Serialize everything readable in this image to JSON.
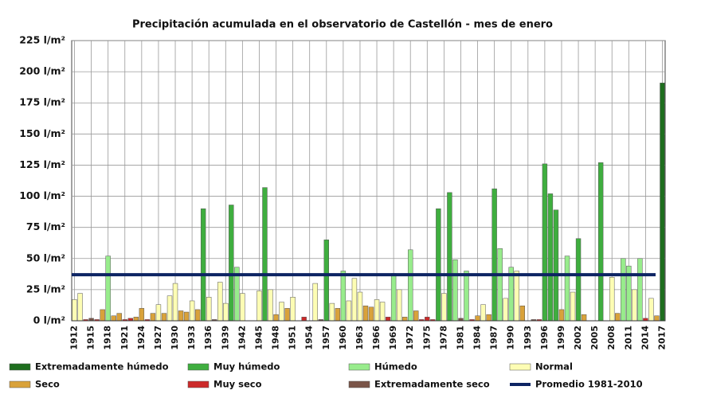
{
  "chart_data": {
    "type": "bar",
    "title": "Precipitación acumulada en el observatorio de Castellón - mes de enero",
    "categories": [
      "1912",
      null,
      null,
      "1915",
      null,
      null,
      "1918",
      null,
      null,
      "1921",
      null,
      null,
      "1924",
      null,
      null,
      "1927",
      null,
      null,
      "1930",
      null,
      null,
      "1933",
      null,
      null,
      "1936",
      null,
      null,
      "1939",
      null,
      null,
      "1942",
      null,
      null,
      "1945",
      null,
      null,
      "1948",
      null,
      null,
      "1951",
      null,
      null,
      "1954",
      null,
      null,
      "1957",
      null,
      null,
      "1960",
      null,
      null,
      "1963",
      null,
      null,
      "1966",
      null,
      null,
      "1969",
      null,
      null,
      "1972",
      null,
      null,
      "1975",
      null,
      null,
      "1978",
      null,
      null,
      "1981",
      null,
      null,
      "1984",
      null,
      null,
      "1987",
      null,
      null,
      "1990",
      null,
      null,
      "1993",
      null,
      null,
      "1996",
      null,
      null,
      "1999",
      null,
      null,
      "2002",
      null,
      null,
      "2005",
      null,
      null,
      "2008",
      null,
      null,
      "2011",
      null,
      null,
      "2014",
      null,
      null,
      "2017"
    ],
    "series": [
      {
        "name": "Extremadamente húmedo",
        "color": "#1e6e1e",
        "values": [
          null,
          null,
          null,
          null,
          null,
          null,
          null,
          null,
          null,
          null,
          null,
          null,
          null,
          null,
          null,
          null,
          null,
          null,
          null,
          null,
          null,
          null,
          null,
          null,
          null,
          null,
          null,
          null,
          null,
          null,
          null,
          null,
          null,
          null,
          null,
          null,
          null,
          null,
          null,
          null,
          null,
          null,
          null,
          null,
          null,
          null,
          null,
          null,
          null,
          null,
          null,
          null,
          null,
          null,
          null,
          null,
          null,
          null,
          null,
          null,
          null,
          null,
          null,
          null,
          null,
          null,
          null,
          null,
          null,
          null,
          null,
          null,
          null,
          null,
          null,
          null,
          null,
          null,
          null,
          null,
          null,
          null,
          null,
          null,
          null,
          null,
          null,
          null,
          null,
          null,
          null,
          null,
          null,
          null,
          null,
          null,
          null,
          null,
          null,
          null,
          null,
          null,
          null,
          null,
          null,
          191
        ]
      },
      {
        "name": "Muy húmedo",
        "color": "#3fae3f",
        "values": [
          null,
          null,
          null,
          null,
          null,
          null,
          null,
          null,
          null,
          null,
          null,
          null,
          null,
          null,
          null,
          null,
          null,
          null,
          null,
          null,
          null,
          null,
          null,
          90,
          null,
          null,
          null,
          null,
          93,
          null,
          null,
          null,
          null,
          null,
          107,
          null,
          null,
          null,
          null,
          null,
          null,
          null,
          null,
          null,
          null,
          65,
          null,
          null,
          null,
          null,
          null,
          null,
          null,
          null,
          null,
          null,
          null,
          null,
          null,
          null,
          null,
          null,
          null,
          null,
          null,
          90,
          null,
          103,
          null,
          null,
          null,
          null,
          null,
          null,
          null,
          106,
          null,
          null,
          null,
          null,
          null,
          null,
          null,
          null,
          126,
          102,
          89,
          null,
          null,
          null,
          66,
          null,
          null,
          null,
          127,
          null,
          null,
          null,
          null,
          null,
          null,
          null,
          null,
          null,
          null,
          null
        ]
      },
      {
        "name": "Húmedo",
        "color": "#98ec8c",
        "values": [
          null,
          null,
          null,
          null,
          null,
          null,
          52,
          null,
          null,
          null,
          null,
          null,
          null,
          null,
          null,
          null,
          null,
          null,
          null,
          null,
          null,
          null,
          null,
          null,
          null,
          null,
          null,
          null,
          null,
          43,
          null,
          null,
          null,
          null,
          null,
          null,
          null,
          null,
          null,
          null,
          null,
          null,
          null,
          null,
          null,
          null,
          null,
          null,
          40,
          null,
          null,
          null,
          null,
          null,
          null,
          null,
          null,
          38,
          null,
          null,
          57,
          null,
          null,
          null,
          null,
          null,
          null,
          null,
          49,
          null,
          40,
          null,
          null,
          null,
          null,
          null,
          58,
          null,
          43,
          null,
          null,
          null,
          null,
          null,
          null,
          null,
          null,
          null,
          52,
          null,
          null,
          null,
          null,
          null,
          null,
          null,
          null,
          null,
          50,
          44,
          null,
          50,
          null,
          null,
          null,
          null
        ]
      },
      {
        "name": "Normal",
        "color": "#fdfdb4",
        "values": [
          17,
          22,
          null,
          null,
          null,
          null,
          null,
          null,
          null,
          null,
          null,
          null,
          null,
          null,
          null,
          13,
          null,
          20,
          30,
          null,
          null,
          16,
          null,
          null,
          19,
          null,
          31,
          14,
          null,
          null,
          22,
          null,
          null,
          24,
          null,
          25,
          null,
          15,
          null,
          19,
          null,
          null,
          null,
          30,
          null,
          null,
          14,
          null,
          null,
          16,
          34,
          23,
          null,
          null,
          17,
          15,
          null,
          null,
          25,
          null,
          null,
          null,
          null,
          null,
          null,
          null,
          22,
          null,
          null,
          null,
          null,
          null,
          null,
          13,
          null,
          null,
          null,
          18,
          null,
          40,
          null,
          null,
          null,
          null,
          null,
          null,
          null,
          null,
          null,
          23,
          null,
          null,
          null,
          null,
          null,
          null,
          35,
          null,
          null,
          null,
          25,
          null,
          null,
          18,
          null,
          null
        ]
      },
      {
        "name": "Seco",
        "color": "#d9a23a",
        "values": [
          null,
          null,
          null,
          null,
          null,
          9,
          null,
          4,
          6,
          null,
          null,
          3,
          10,
          null,
          6,
          null,
          6,
          null,
          null,
          8,
          7,
          null,
          9,
          null,
          null,
          null,
          null,
          null,
          null,
          null,
          null,
          null,
          null,
          null,
          null,
          null,
          5,
          null,
          10,
          null,
          null,
          null,
          null,
          null,
          null,
          null,
          null,
          10,
          null,
          null,
          null,
          null,
          12,
          11,
          null,
          null,
          null,
          null,
          null,
          3,
          null,
          8,
          null,
          null,
          null,
          null,
          null,
          null,
          null,
          null,
          null,
          null,
          4,
          null,
          5,
          null,
          null,
          null,
          null,
          null,
          12,
          null,
          null,
          null,
          null,
          null,
          null,
          9,
          null,
          null,
          null,
          5,
          null,
          null,
          null,
          null,
          null,
          6,
          null,
          null,
          null,
          null,
          null,
          null,
          4,
          null
        ]
      },
      {
        "name": "Muy seco",
        "color": "#cc2a2a",
        "values": [
          null,
          null,
          1,
          null,
          1,
          null,
          null,
          null,
          null,
          1,
          2,
          null,
          null,
          1,
          null,
          null,
          null,
          null,
          null,
          null,
          null,
          null,
          null,
          null,
          null,
          null,
          null,
          null,
          null,
          null,
          null,
          0,
          0,
          null,
          null,
          null,
          null,
          null,
          null,
          null,
          0,
          3,
          0,
          null,
          null,
          null,
          null,
          null,
          null,
          null,
          null,
          null,
          null,
          null,
          null,
          null,
          3,
          null,
          null,
          null,
          null,
          null,
          1,
          3,
          1,
          null,
          null,
          null,
          null,
          null,
          null,
          1,
          null,
          null,
          null,
          null,
          null,
          null,
          null,
          null,
          null,
          0,
          null,
          1,
          null,
          null,
          null,
          null,
          null,
          null,
          null,
          null,
          0,
          0,
          null,
          0,
          null,
          null,
          null,
          null,
          null,
          null,
          2,
          null,
          null,
          null
        ]
      },
      {
        "name": "Extremadamente seco",
        "color": "#7a5448",
        "values": [
          null,
          null,
          null,
          2,
          null,
          null,
          null,
          null,
          null,
          null,
          null,
          null,
          null,
          null,
          null,
          null,
          null,
          null,
          null,
          null,
          null,
          null,
          null,
          null,
          null,
          1,
          null,
          null,
          null,
          null,
          null,
          null,
          null,
          null,
          null,
          null,
          null,
          null,
          null,
          null,
          null,
          null,
          null,
          null,
          1,
          null,
          null,
          null,
          null,
          null,
          null,
          null,
          null,
          null,
          null,
          null,
          null,
          null,
          null,
          null,
          null,
          null,
          null,
          null,
          null,
          null,
          null,
          null,
          null,
          2,
          null,
          null,
          null,
          null,
          null,
          null,
          null,
          null,
          null,
          null,
          null,
          null,
          1,
          null,
          null,
          null,
          null,
          null,
          null,
          null,
          null,
          null,
          null,
          null,
          null,
          null,
          null,
          null,
          null,
          null,
          null,
          null,
          null,
          null,
          null,
          null
        ]
      }
    ],
    "reference_line": {
      "name": "Promedio 1981-2010",
      "color": "#0d2463",
      "value": 37
    },
    "ylim": [
      0,
      225
    ],
    "yticks": [
      {
        "value": 0,
        "label": "0 l/m²"
      },
      {
        "value": 25,
        "label": "25 l/m²"
      },
      {
        "value": 50,
        "label": "50 l/m²"
      },
      {
        "value": 75,
        "label": "75 l/m²"
      },
      {
        "value": 100,
        "label": "100 l/m²"
      },
      {
        "value": 125,
        "label": "125 l/m²"
      },
      {
        "value": 150,
        "label": "150 l/m²"
      },
      {
        "value": 175,
        "label": "175 l/m²"
      },
      {
        "value": 200,
        "label": "200 l/m²"
      },
      {
        "value": 225,
        "label": "225 l/m²"
      }
    ],
    "grid": true,
    "legend": "bottom"
  }
}
